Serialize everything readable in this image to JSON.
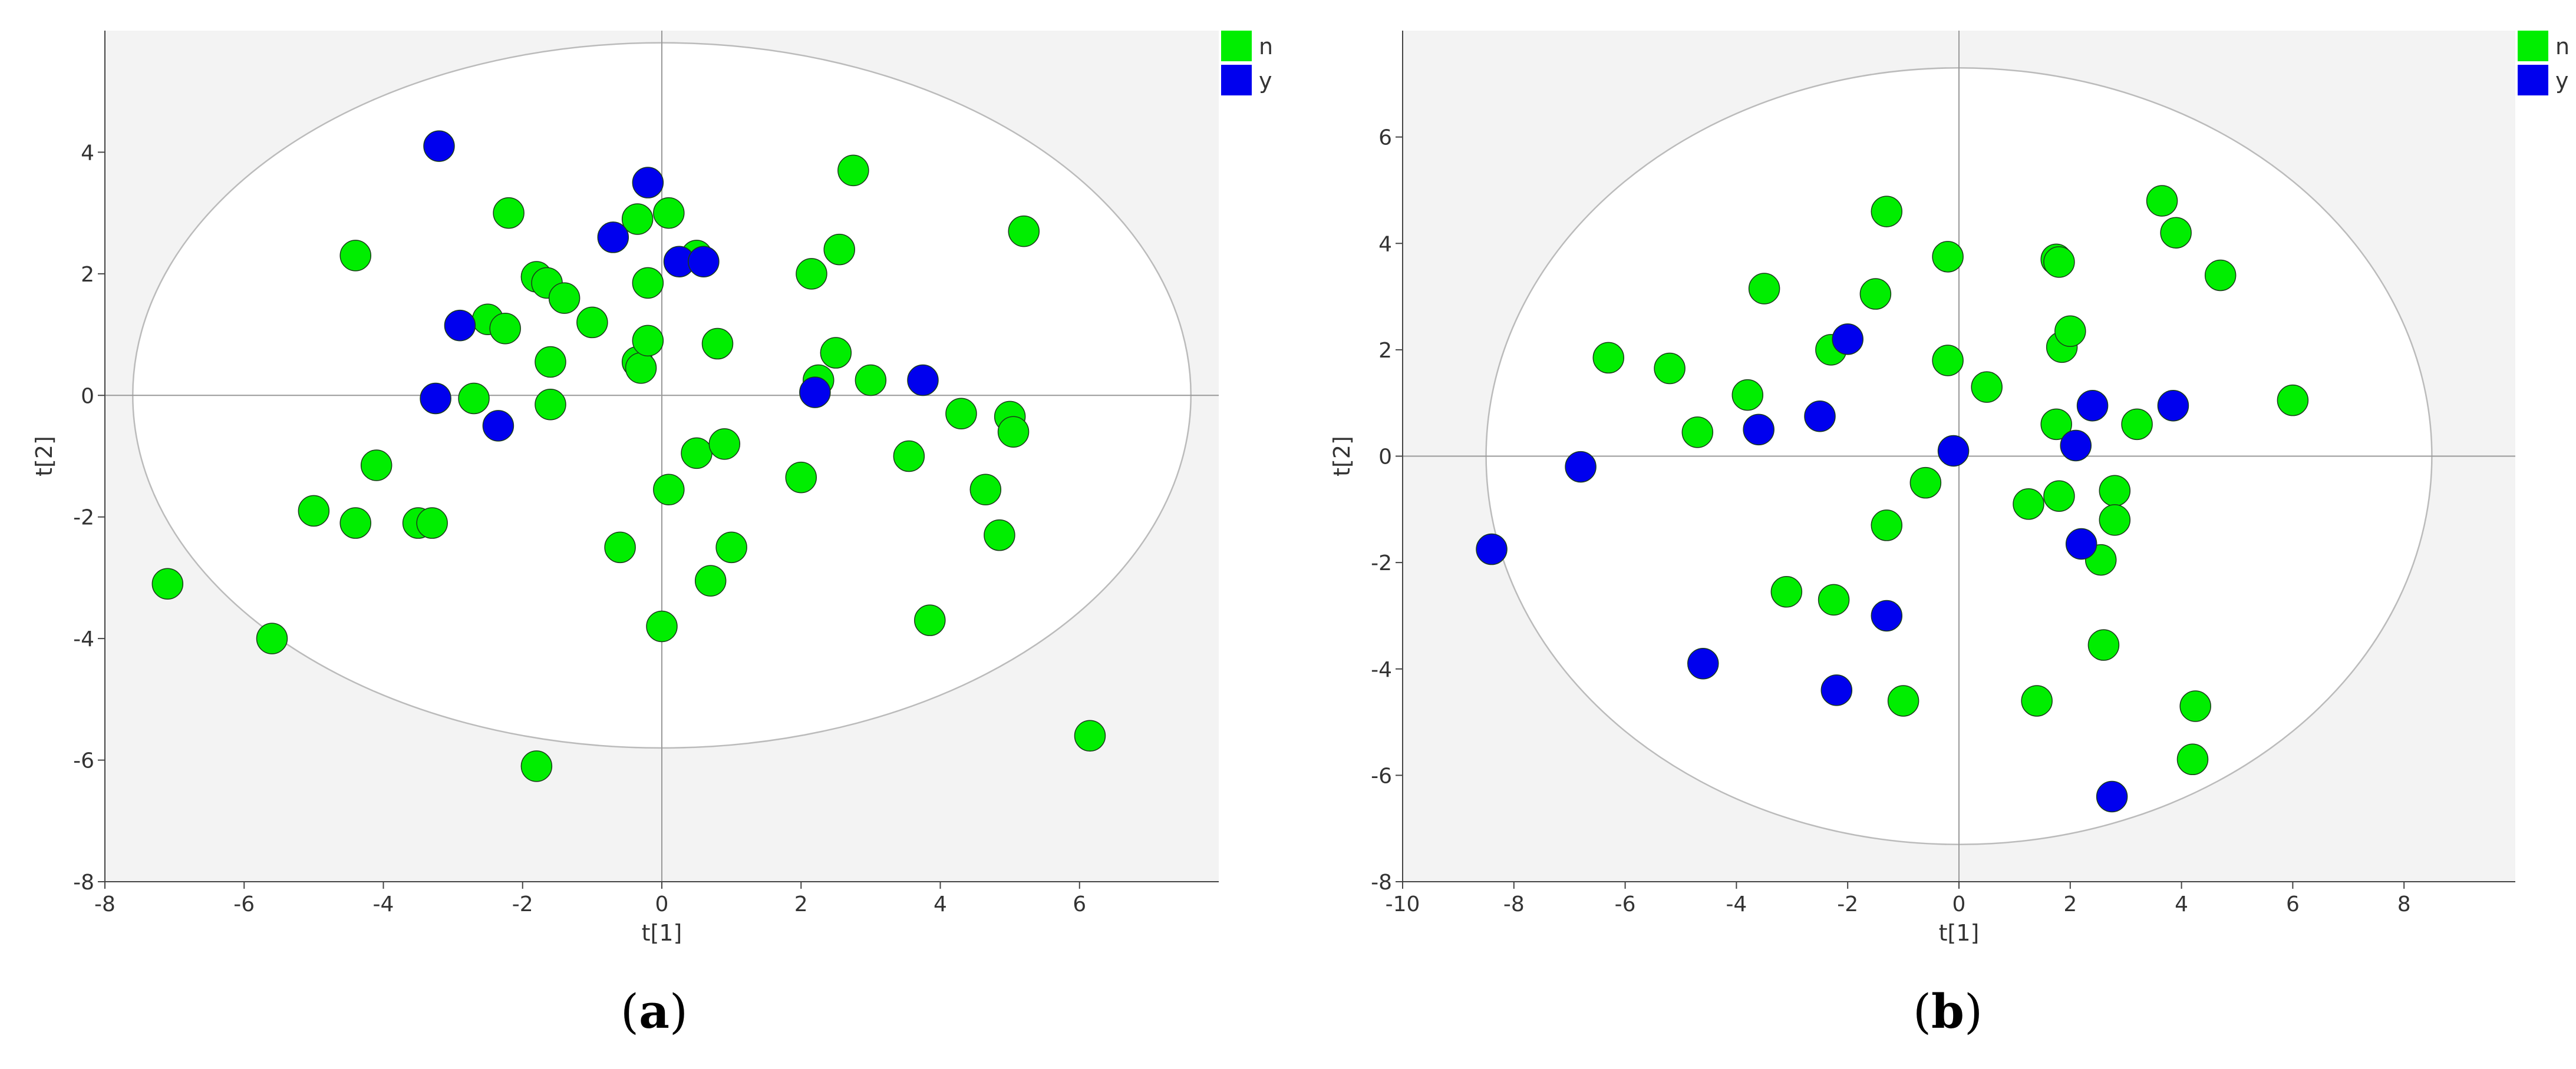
{
  "colors": {
    "n": "#00ee00",
    "y": "#0000ee",
    "bg_outside": "#f3f3f3",
    "ellipse_fill": "#ffffff",
    "ellipse_stroke": "#bbbbbb",
    "axis": "#999999"
  },
  "chart_data": [
    {
      "type": "scatter",
      "panel_label": {
        "open": "(",
        "letter": "a",
        "close": ")"
      },
      "xlabel": "t[1]",
      "ylabel": "t[2]",
      "xlim": [
        -8,
        8
      ],
      "ylim": [
        -8,
        6
      ],
      "xticks": [
        -8,
        -6,
        -4,
        -2,
        0,
        2,
        4,
        6
      ],
      "yticks": [
        -8,
        -6,
        -4,
        -2,
        0,
        2,
        4
      ],
      "hotelling_ellipse": {
        "rx": 7.6,
        "ry": 5.8
      },
      "legend": [
        "n",
        "y"
      ],
      "grid": false,
      "series": [
        {
          "name": "n",
          "points": [
            [
              -7.1,
              -3.1
            ],
            [
              -5.6,
              -4.0
            ],
            [
              -5.0,
              -1.9
            ],
            [
              -4.4,
              -2.1
            ],
            [
              -4.4,
              2.3
            ],
            [
              -4.1,
              -1.15
            ],
            [
              -3.5,
              -2.1
            ],
            [
              -3.3,
              -2.1
            ],
            [
              -2.7,
              -0.05
            ],
            [
              -2.5,
              1.25
            ],
            [
              -2.25,
              1.1
            ],
            [
              -2.2,
              3.0
            ],
            [
              -1.8,
              1.95
            ],
            [
              -1.65,
              1.85
            ],
            [
              -1.6,
              0.55
            ],
            [
              -1.6,
              -0.15
            ],
            [
              -1.4,
              1.6
            ],
            [
              -1.0,
              1.2
            ],
            [
              -1.8,
              -6.1
            ],
            [
              -0.6,
              -2.5
            ],
            [
              -0.35,
              2.9
            ],
            [
              -0.35,
              0.55
            ],
            [
              -0.3,
              0.45
            ],
            [
              -0.2,
              0.9
            ],
            [
              -0.2,
              1.85
            ],
            [
              0.1,
              3.0
            ],
            [
              0.5,
              2.3
            ],
            [
              0.5,
              -0.95
            ],
            [
              0.1,
              -1.55
            ],
            [
              0.0,
              -3.8
            ],
            [
              0.7,
              -3.05
            ],
            [
              0.8,
              0.85
            ],
            [
              0.9,
              -0.8
            ],
            [
              1.0,
              -2.5
            ],
            [
              2.0,
              -1.35
            ],
            [
              2.15,
              2.0
            ],
            [
              2.25,
              0.25
            ],
            [
              2.5,
              0.7
            ],
            [
              2.55,
              2.4
            ],
            [
              2.75,
              3.7
            ],
            [
              3.0,
              0.25
            ],
            [
              3.55,
              -1.0
            ],
            [
              3.85,
              -3.7
            ],
            [
              4.3,
              -0.3
            ],
            [
              4.65,
              -1.55
            ],
            [
              4.85,
              -2.3
            ],
            [
              5.0,
              -0.35
            ],
            [
              5.05,
              -0.6
            ],
            [
              5.2,
              2.7
            ],
            [
              6.15,
              -5.6
            ]
          ]
        },
        {
          "name": "y",
          "points": [
            [
              -3.2,
              4.1
            ],
            [
              -2.9,
              1.15
            ],
            [
              -3.25,
              -0.05
            ],
            [
              -2.35,
              -0.5
            ],
            [
              -0.7,
              2.6
            ],
            [
              -0.2,
              3.5
            ],
            [
              0.25,
              2.2
            ],
            [
              0.6,
              2.2
            ],
            [
              2.2,
              0.05
            ],
            [
              3.75,
              0.25
            ]
          ]
        }
      ]
    },
    {
      "type": "scatter",
      "panel_label": {
        "open": "(",
        "letter": "b",
        "close": ")"
      },
      "xlabel": "t[1]",
      "ylabel": "t[2]",
      "xlim": [
        -10,
        10
      ],
      "ylim": [
        -8,
        8
      ],
      "xticks": [
        -10,
        -8,
        -6,
        -4,
        -2,
        0,
        2,
        4,
        6,
        8
      ],
      "yticks": [
        -8,
        -6,
        -4,
        -2,
        0,
        2,
        4,
        6
      ],
      "hotelling_ellipse": {
        "rx": 8.5,
        "ry": 7.3
      },
      "legend": [
        "n",
        "y"
      ],
      "grid": false,
      "series": [
        {
          "name": "n",
          "points": [
            [
              -6.3,
              1.85
            ],
            [
              -5.2,
              1.65
            ],
            [
              -4.7,
              0.45
            ],
            [
              -3.8,
              1.15
            ],
            [
              -3.5,
              3.15
            ],
            [
              -3.1,
              -2.55
            ],
            [
              -2.3,
              2.0
            ],
            [
              -2.25,
              -2.7
            ],
            [
              -1.5,
              3.05
            ],
            [
              -1.3,
              4.6
            ],
            [
              -1.3,
              -1.3
            ],
            [
              -1.0,
              -4.6
            ],
            [
              -0.6,
              -0.5
            ],
            [
              -0.2,
              3.75
            ],
            [
              -0.2,
              1.8
            ],
            [
              0.5,
              1.3
            ],
            [
              1.25,
              -0.9
            ],
            [
              1.4,
              -4.6
            ],
            [
              1.75,
              3.7
            ],
            [
              1.8,
              3.65
            ],
            [
              1.75,
              0.6
            ],
            [
              1.8,
              -0.75
            ],
            [
              1.85,
              2.05
            ],
            [
              2.0,
              2.35
            ],
            [
              2.55,
              -1.95
            ],
            [
              2.6,
              -3.55
            ],
            [
              2.8,
              -0.65
            ],
            [
              2.8,
              -1.2
            ],
            [
              3.2,
              0.6
            ],
            [
              3.65,
              4.8
            ],
            [
              3.9,
              4.2
            ],
            [
              4.25,
              -4.7
            ],
            [
              4.2,
              -5.7
            ],
            [
              4.7,
              3.4
            ],
            [
              6.0,
              1.05
            ]
          ]
        },
        {
          "name": "y",
          "points": [
            [
              -8.4,
              -1.75
            ],
            [
              -6.8,
              -0.2
            ],
            [
              -4.6,
              -3.9
            ],
            [
              -3.6,
              0.5
            ],
            [
              -2.5,
              0.75
            ],
            [
              -2.2,
              -4.4
            ],
            [
              -1.3,
              -3.0
            ],
            [
              -2.0,
              2.2
            ],
            [
              -0.1,
              0.1
            ],
            [
              2.1,
              0.2
            ],
            [
              2.2,
              -1.65
            ],
            [
              2.4,
              0.95
            ],
            [
              2.75,
              -6.4
            ],
            [
              3.85,
              0.95
            ]
          ]
        }
      ]
    }
  ]
}
